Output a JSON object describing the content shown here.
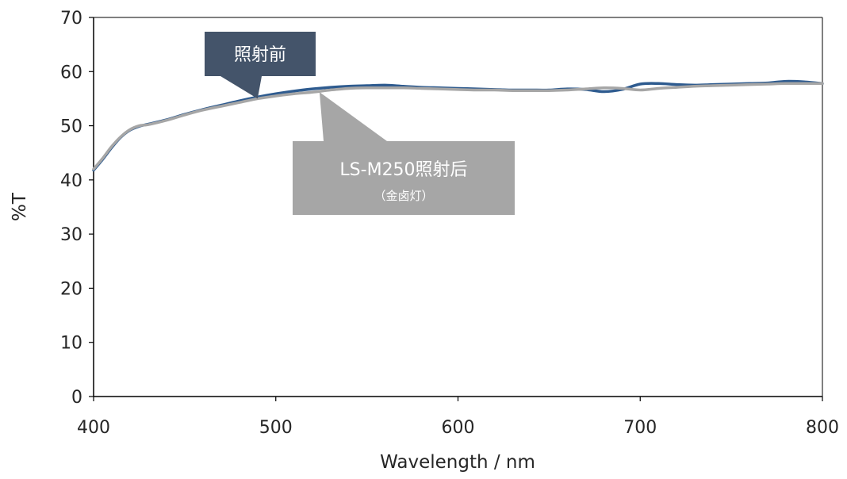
{
  "chart_data": {
    "type": "line",
    "xlabel": "Wavelength / nm",
    "ylabel": "%T",
    "xlim": [
      400,
      800
    ],
    "ylim": [
      0,
      70
    ],
    "x_ticks": [
      400,
      500,
      600,
      700,
      800
    ],
    "y_ticks": [
      0,
      10,
      20,
      30,
      40,
      50,
      60,
      70
    ],
    "grid": false,
    "series": [
      {
        "name": "照射前",
        "color": "#2e5b8f",
        "x": [
          400,
          405,
          410,
          415,
          420,
          425,
          430,
          440,
          450,
          460,
          470,
          480,
          490,
          500,
          510,
          520,
          530,
          540,
          550,
          560,
          570,
          580,
          590,
          600,
          610,
          620,
          630,
          640,
          650,
          660,
          670,
          680,
          690,
          700,
          710,
          720,
          730,
          740,
          750,
          760,
          770,
          780,
          790,
          800
        ],
        "y": [
          41.8,
          43.8,
          46.0,
          47.9,
          49.2,
          49.9,
          50.3,
          51.1,
          52.1,
          53.0,
          53.8,
          54.6,
          55.3,
          55.9,
          56.4,
          56.8,
          57.1,
          57.3,
          57.4,
          57.5,
          57.3,
          57.1,
          57.0,
          56.9,
          56.8,
          56.7,
          56.6,
          56.6,
          56.6,
          56.8,
          56.7,
          56.3,
          56.7,
          57.7,
          57.8,
          57.6,
          57.5,
          57.6,
          57.7,
          57.8,
          57.9,
          58.2,
          58.1,
          57.8
        ]
      },
      {
        "name": "LS-M250照射后",
        "color": "#a6a6a6",
        "x": [
          400,
          405,
          410,
          415,
          420,
          425,
          430,
          440,
          450,
          460,
          470,
          480,
          490,
          500,
          510,
          520,
          530,
          540,
          550,
          560,
          570,
          580,
          590,
          600,
          610,
          620,
          630,
          640,
          650,
          660,
          670,
          680,
          690,
          700,
          710,
          720,
          730,
          740,
          750,
          760,
          770,
          780,
          790,
          800
        ],
        "y": [
          42.0,
          44.0,
          46.2,
          48.0,
          49.3,
          50.0,
          50.2,
          51.0,
          52.0,
          52.9,
          53.6,
          54.3,
          55.0,
          55.5,
          55.9,
          56.2,
          56.6,
          56.9,
          57.0,
          57.0,
          57.0,
          56.9,
          56.8,
          56.7,
          56.6,
          56.6,
          56.5,
          56.5,
          56.5,
          56.6,
          56.8,
          57.0,
          56.9,
          56.6,
          56.9,
          57.1,
          57.3,
          57.4,
          57.5,
          57.6,
          57.7,
          57.8,
          57.8,
          57.8
        ]
      }
    ],
    "annotations": [
      {
        "text": "照射前",
        "subtext": "",
        "fill": "#44546a",
        "points_to_series": 0
      },
      {
        "text": "LS-M250照射后",
        "subtext": "（金卤灯）",
        "fill": "#a6a6a6",
        "points_to_series": 1
      }
    ]
  }
}
